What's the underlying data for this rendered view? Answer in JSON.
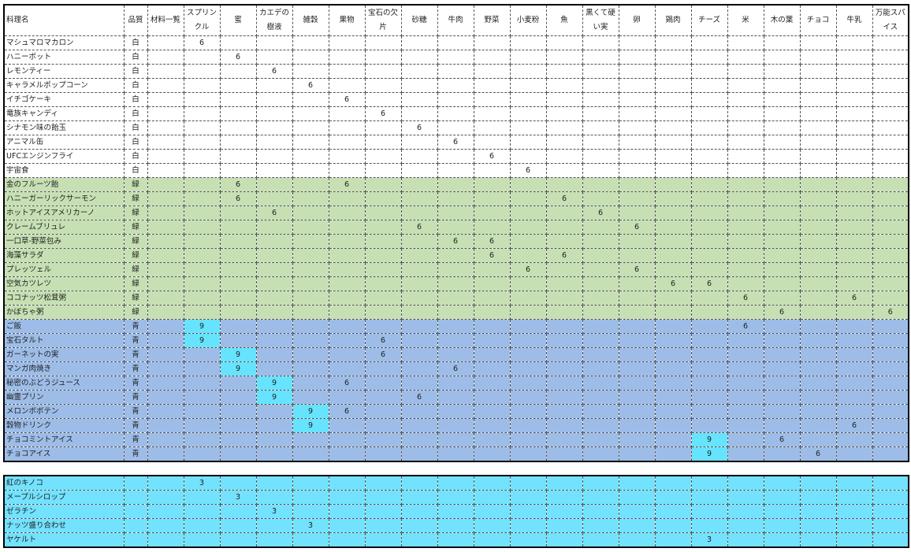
{
  "table": {
    "headers": [
      "料理名",
      "品質",
      "材料一覧",
      "スプリンクル",
      "蜜",
      "カエデの樹液",
      "雑穀",
      "果物",
      "宝石の欠片",
      "砂糖",
      "牛肉",
      "野菜",
      "小麦粉",
      "魚",
      "黒くて硬い実",
      "卵",
      "鶏肉",
      "チーズ",
      "米",
      "木の葉",
      "チョコ",
      "牛乳",
      "万能スパイス"
    ],
    "highlight_color": "#66e3ff",
    "sections": [
      {
        "color": "#ffffff",
        "rows": [
          {
            "name": "マシュマロマカロン",
            "quality": "白",
            "values": [
              null,
              6,
              null,
              null,
              null,
              null,
              null,
              null,
              null,
              null,
              null,
              null,
              null,
              null,
              null,
              null,
              null,
              null,
              null,
              null,
              null
            ]
          },
          {
            "name": "ハニーポット",
            "quality": "白",
            "values": [
              null,
              null,
              6,
              null,
              null,
              null,
              null,
              null,
              null,
              null,
              null,
              null,
              null,
              null,
              null,
              null,
              null,
              null,
              null,
              null,
              null
            ]
          },
          {
            "name": "レモンティー",
            "quality": "白",
            "values": [
              null,
              null,
              null,
              6,
              null,
              null,
              null,
              null,
              null,
              null,
              null,
              null,
              null,
              null,
              null,
              null,
              null,
              null,
              null,
              null,
              null
            ]
          },
          {
            "name": "キャラメルポップコーン",
            "quality": "白",
            "values": [
              null,
              null,
              null,
              null,
              6,
              null,
              null,
              null,
              null,
              null,
              null,
              null,
              null,
              null,
              null,
              null,
              null,
              null,
              null,
              null,
              null
            ]
          },
          {
            "name": "イチゴケーキ",
            "quality": "白",
            "values": [
              null,
              null,
              null,
              null,
              null,
              6,
              null,
              null,
              null,
              null,
              null,
              null,
              null,
              null,
              null,
              null,
              null,
              null,
              null,
              null,
              null
            ]
          },
          {
            "name": "竜族キャンディ",
            "quality": "白",
            "values": [
              null,
              null,
              null,
              null,
              null,
              null,
              6,
              null,
              null,
              null,
              null,
              null,
              null,
              null,
              null,
              null,
              null,
              null,
              null,
              null,
              null
            ]
          },
          {
            "name": "シナモン味の飴玉",
            "quality": "白",
            "values": [
              null,
              null,
              null,
              null,
              null,
              null,
              null,
              6,
              null,
              null,
              null,
              null,
              null,
              null,
              null,
              null,
              null,
              null,
              null,
              null,
              null
            ]
          },
          {
            "name": "アニマル缶",
            "quality": "白",
            "values": [
              null,
              null,
              null,
              null,
              null,
              null,
              null,
              null,
              6,
              null,
              null,
              null,
              null,
              null,
              null,
              null,
              null,
              null,
              null,
              null,
              null
            ]
          },
          {
            "name": "UFCエンジンフライ",
            "quality": "白",
            "values": [
              null,
              null,
              null,
              null,
              null,
              null,
              null,
              null,
              null,
              6,
              null,
              null,
              null,
              null,
              null,
              null,
              null,
              null,
              null,
              null,
              null
            ]
          },
          {
            "name": "宇宙食",
            "quality": "白",
            "values": [
              null,
              null,
              null,
              null,
              null,
              null,
              null,
              null,
              null,
              null,
              6,
              null,
              null,
              null,
              null,
              null,
              null,
              null,
              null,
              null,
              null
            ]
          }
        ]
      },
      {
        "color": "#c6e0b4",
        "rows": [
          {
            "name": "金のフルーツ飴",
            "quality": "緑",
            "values": [
              null,
              null,
              6,
              null,
              null,
              6,
              null,
              null,
              null,
              null,
              null,
              null,
              null,
              null,
              null,
              null,
              null,
              null,
              null,
              null,
              null
            ]
          },
          {
            "name": "ハニーガーリックサーモン",
            "quality": "緑",
            "values": [
              null,
              null,
              6,
              null,
              null,
              null,
              null,
              null,
              null,
              null,
              null,
              6,
              null,
              null,
              null,
              null,
              null,
              null,
              null,
              null,
              null
            ]
          },
          {
            "name": "ホットアイスアメリカーノ",
            "quality": "緑",
            "values": [
              null,
              null,
              null,
              6,
              null,
              null,
              null,
              null,
              null,
              null,
              null,
              null,
              6,
              null,
              null,
              null,
              null,
              null,
              null,
              null,
              null
            ]
          },
          {
            "name": "クレームブリュレ",
            "quality": "緑",
            "values": [
              null,
              null,
              null,
              null,
              null,
              null,
              null,
              6,
              null,
              null,
              null,
              null,
              null,
              6,
              null,
              null,
              null,
              null,
              null,
              null,
              null
            ]
          },
          {
            "name": "一口草-野菜包み",
            "quality": "緑",
            "values": [
              null,
              null,
              null,
              null,
              null,
              null,
              null,
              null,
              6,
              6,
              null,
              null,
              null,
              null,
              null,
              null,
              null,
              null,
              null,
              null,
              null
            ]
          },
          {
            "name": "海藻サラダ",
            "quality": "緑",
            "values": [
              null,
              null,
              null,
              null,
              null,
              null,
              null,
              null,
              null,
              6,
              null,
              6,
              null,
              null,
              null,
              null,
              null,
              null,
              null,
              null,
              null
            ]
          },
          {
            "name": "プレッツェル",
            "quality": "緑",
            "values": [
              null,
              null,
              null,
              null,
              null,
              null,
              null,
              null,
              null,
              null,
              6,
              null,
              null,
              6,
              null,
              null,
              null,
              null,
              null,
              null,
              null
            ]
          },
          {
            "name": "空気カツレツ",
            "quality": "緑",
            "values": [
              null,
              null,
              null,
              null,
              null,
              null,
              null,
              null,
              null,
              null,
              null,
              null,
              null,
              null,
              6,
              6,
              null,
              null,
              null,
              null,
              null
            ]
          },
          {
            "name": "ココナッツ松茸粥",
            "quality": "緑",
            "values": [
              null,
              null,
              null,
              null,
              null,
              null,
              null,
              null,
              null,
              null,
              null,
              null,
              null,
              null,
              null,
              null,
              6,
              null,
              null,
              6,
              null
            ]
          },
          {
            "name": "かぼちゃ粥",
            "quality": "緑",
            "values": [
              null,
              null,
              null,
              null,
              null,
              null,
              null,
              null,
              null,
              null,
              null,
              null,
              null,
              null,
              null,
              null,
              null,
              6,
              null,
              null,
              6
            ]
          }
        ]
      },
      {
        "color": "#9dbde8",
        "rows": [
          {
            "name": "ご飯",
            "quality": "青",
            "highlight": 1,
            "values": [
              null,
              9,
              null,
              null,
              null,
              null,
              null,
              null,
              null,
              null,
              null,
              null,
              null,
              null,
              null,
              null,
              6,
              null,
              null,
              null,
              null
            ]
          },
          {
            "name": "宝石タルト",
            "quality": "青",
            "highlight": 1,
            "values": [
              null,
              9,
              null,
              null,
              null,
              null,
              6,
              null,
              null,
              null,
              null,
              null,
              null,
              null,
              null,
              null,
              null,
              null,
              null,
              null,
              null
            ]
          },
          {
            "name": "ガーネットの実",
            "quality": "青",
            "highlight": 2,
            "values": [
              null,
              null,
              9,
              null,
              null,
              null,
              6,
              null,
              null,
              null,
              null,
              null,
              null,
              null,
              null,
              null,
              null,
              null,
              null,
              null,
              null
            ]
          },
          {
            "name": "マンガ肉焼き",
            "quality": "青",
            "highlight": 2,
            "values": [
              null,
              null,
              9,
              null,
              null,
              null,
              null,
              null,
              6,
              null,
              null,
              null,
              null,
              null,
              null,
              null,
              null,
              null,
              null,
              null,
              null
            ]
          },
          {
            "name": "秘密のぶどうジュース",
            "quality": "青",
            "highlight": 3,
            "values": [
              null,
              null,
              null,
              9,
              null,
              6,
              null,
              null,
              null,
              null,
              null,
              null,
              null,
              null,
              null,
              null,
              null,
              null,
              null,
              null,
              null
            ]
          },
          {
            "name": "幽霊プリン",
            "quality": "青",
            "highlight": 3,
            "values": [
              null,
              null,
              null,
              9,
              null,
              null,
              null,
              6,
              null,
              null,
              null,
              null,
              null,
              null,
              null,
              null,
              null,
              null,
              null,
              null,
              null
            ]
          },
          {
            "name": "メロンボボテン",
            "quality": "青",
            "highlight": 4,
            "values": [
              null,
              null,
              null,
              null,
              9,
              6,
              null,
              null,
              null,
              null,
              null,
              null,
              null,
              null,
              null,
              null,
              null,
              null,
              null,
              null,
              null
            ]
          },
          {
            "name": "穀物ドリンク",
            "quality": "青",
            "highlight": 4,
            "values": [
              null,
              null,
              null,
              null,
              9,
              null,
              null,
              null,
              null,
              null,
              null,
              null,
              null,
              null,
              null,
              null,
              null,
              null,
              null,
              6,
              null
            ]
          },
          {
            "name": "チョコミントアイス",
            "quality": "青",
            "highlight": 15,
            "values": [
              null,
              null,
              null,
              null,
              null,
              null,
              null,
              null,
              null,
              null,
              null,
              null,
              null,
              null,
              null,
              9,
              null,
              6,
              null,
              null,
              null
            ]
          },
          {
            "name": "チョコアイス",
            "quality": "青",
            "highlight": 15,
            "values": [
              null,
              null,
              null,
              null,
              null,
              null,
              null,
              null,
              null,
              null,
              null,
              null,
              null,
              null,
              null,
              9,
              null,
              null,
              6,
              null,
              null
            ]
          }
        ]
      }
    ]
  },
  "materials": {
    "color": "#72e2ff",
    "rows": [
      {
        "name": "紅のキノコ",
        "values": [
          null,
          3,
          null,
          null,
          null,
          null,
          null,
          null,
          null,
          null,
          null,
          null,
          null,
          null,
          null,
          null,
          null,
          null,
          null,
          null,
          null
        ]
      },
      {
        "name": "メープルシロップ",
        "values": [
          null,
          null,
          3,
          null,
          null,
          null,
          null,
          null,
          null,
          null,
          null,
          null,
          null,
          null,
          null,
          null,
          null,
          null,
          null,
          null,
          null
        ]
      },
      {
        "name": "ゼラチン",
        "values": [
          null,
          null,
          null,
          3,
          null,
          null,
          null,
          null,
          null,
          null,
          null,
          null,
          null,
          null,
          null,
          null,
          null,
          null,
          null,
          null,
          null
        ]
      },
      {
        "name": "ナッツ盛り合わせ",
        "values": [
          null,
          null,
          null,
          null,
          3,
          null,
          null,
          null,
          null,
          null,
          null,
          null,
          null,
          null,
          null,
          null,
          null,
          null,
          null,
          null,
          null
        ]
      },
      {
        "name": "ヤケルト",
        "values": [
          null,
          null,
          null,
          null,
          null,
          null,
          null,
          null,
          null,
          null,
          null,
          null,
          null,
          null,
          null,
          3,
          null,
          null,
          null,
          null,
          null
        ]
      }
    ]
  }
}
